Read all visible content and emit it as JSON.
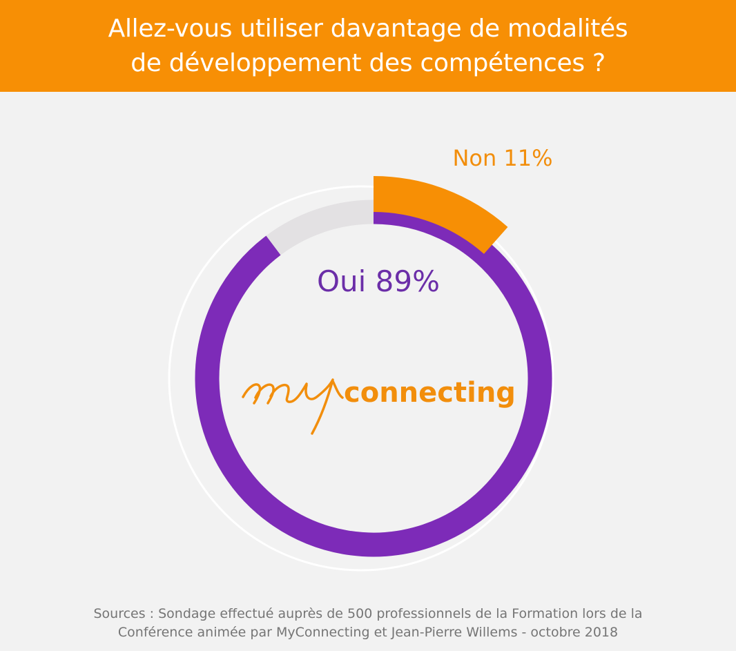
{
  "header": {
    "title_line1": "Allez-vous utiliser davantage de modalités",
    "title_line2": "de développement des compétences ?"
  },
  "chart_data": {
    "type": "pie",
    "style": "donut",
    "categories": [
      "Oui",
      "Non"
    ],
    "values": [
      89,
      11
    ],
    "unit": "%",
    "labels": [
      "Oui 89%",
      "Non 11%"
    ],
    "colors": [
      "#7d2bb8",
      "#f78f05"
    ],
    "title": "Allez-vous utiliser davantage de modalités de développement des compétences ?"
  },
  "logo": {
    "script_text": "my",
    "text": "connecting",
    "color": "#f28e0c"
  },
  "footer": {
    "source_line1": "Sources : Sondage effectué auprès de 500 professionnels de la Formation lors de la",
    "source_line2": "Conférence animée par MyConnecting et Jean-Pierre Willems - octobre 2018"
  }
}
